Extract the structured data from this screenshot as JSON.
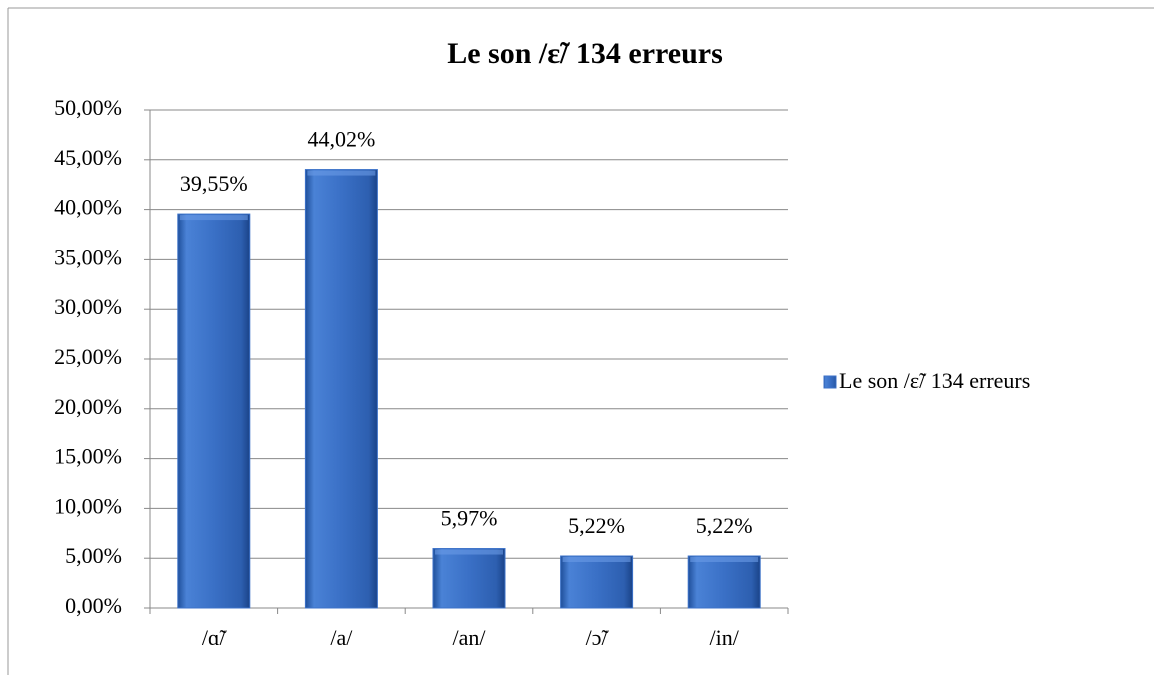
{
  "chart_data": {
    "type": "bar",
    "title": "Le son /ɛ̃/ 134 erreurs",
    "categories": [
      "/ɑ̃/",
      "/a/",
      "/an/",
      "/ɔ̃/",
      "/in/"
    ],
    "series": [
      {
        "name": "Le son /ɛ̃/ 134 erreurs",
        "color": "#3c72c8",
        "values": [
          39.55,
          44.02,
          5.97,
          5.22,
          5.22
        ],
        "value_labels": [
          "39,55%",
          "44,02%",
          "5,97%",
          "5,22%",
          "5,22%"
        ]
      }
    ],
    "ylim": [
      0,
      50
    ],
    "yticks": [
      {
        "value": 0,
        "label": "0,00%"
      },
      {
        "value": 5,
        "label": "5,00%"
      },
      {
        "value": 10,
        "label": "10,00%"
      },
      {
        "value": 15,
        "label": "15,00%"
      },
      {
        "value": 20,
        "label": "20,00%"
      },
      {
        "value": 25,
        "label": "25,00%"
      },
      {
        "value": 30,
        "label": "30,00%"
      },
      {
        "value": 35,
        "label": "35,00%"
      },
      {
        "value": 40,
        "label": "40,00%"
      },
      {
        "value": 45,
        "label": "45,00%"
      },
      {
        "value": 50,
        "label": "50,00%"
      }
    ],
    "grid": true,
    "legend": "right"
  }
}
